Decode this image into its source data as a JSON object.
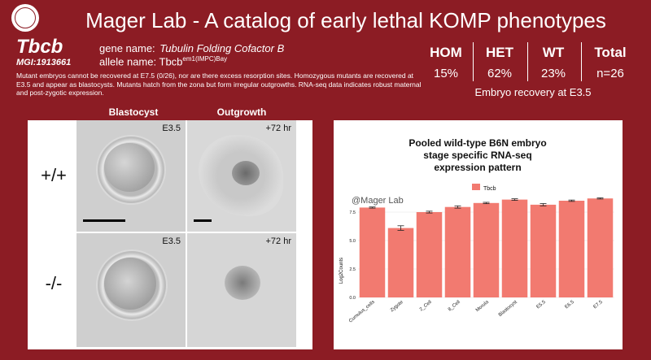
{
  "header": {
    "title": "Mager Lab - A catalog of early lethal KOMP phenotypes"
  },
  "gene": {
    "symbol": "Tbcb",
    "mgi": "MGI:1913661",
    "gene_name_label": "gene name:",
    "gene_name": "Tubulin Folding Cofactor B",
    "allele_label": "allele name:",
    "allele_base": "Tbcb",
    "allele_sup": "em1(IMPC)Bay",
    "summary": "Mutant embryos cannot be recovered at E7.5 (0/26), nor are there excess resorption sites. Homozygous mutants are recovered at E3.5 and appear as blastocysts. Mutants hatch from the zona but form irregular outgrowths. RNA-seq data indicates robust maternal and post-zygotic expression."
  },
  "stats": {
    "headers": [
      "HOM",
      "HET",
      "WT",
      "Total"
    ],
    "values": [
      "15%",
      "62%",
      "23%",
      "n=26"
    ],
    "caption": "Embryo recovery at E3.5"
  },
  "images": {
    "col_headers": [
      "Blastocyst",
      "Outgrowth"
    ],
    "row_labels": [
      "+/+",
      "-/-"
    ],
    "stage_labels": [
      "E3.5",
      "+72 hr",
      "E3.5",
      "+72 hr"
    ]
  },
  "chart_data": {
    "type": "bar",
    "title_lines": [
      "Pooled wild-type B6N embryo",
      "stage specific RNA-seq",
      "expression pattern"
    ],
    "watermark": "@Mager Lab",
    "legend": [
      "Tbcb"
    ],
    "ylabel": "Log2Counts",
    "ylim": [
      0,
      9
    ],
    "yticks": [
      "0.0",
      "2.5",
      "5.0",
      "7.5"
    ],
    "categories": [
      "Cumulus_cells",
      "Zygote",
      "2_Cell",
      "8_Cell",
      "Morula",
      "Blastocyst",
      "E5.5",
      "E6.5",
      "E7.5"
    ],
    "series": [
      {
        "name": "Tbcb",
        "values": [
          7.9,
          6.1,
          7.5,
          7.95,
          8.3,
          8.6,
          8.15,
          8.5,
          8.7
        ],
        "errors": [
          0.05,
          0.2,
          0.08,
          0.1,
          0.06,
          0.07,
          0.1,
          0.06,
          0.05
        ]
      }
    ],
    "bar_color": "#f27a70"
  }
}
